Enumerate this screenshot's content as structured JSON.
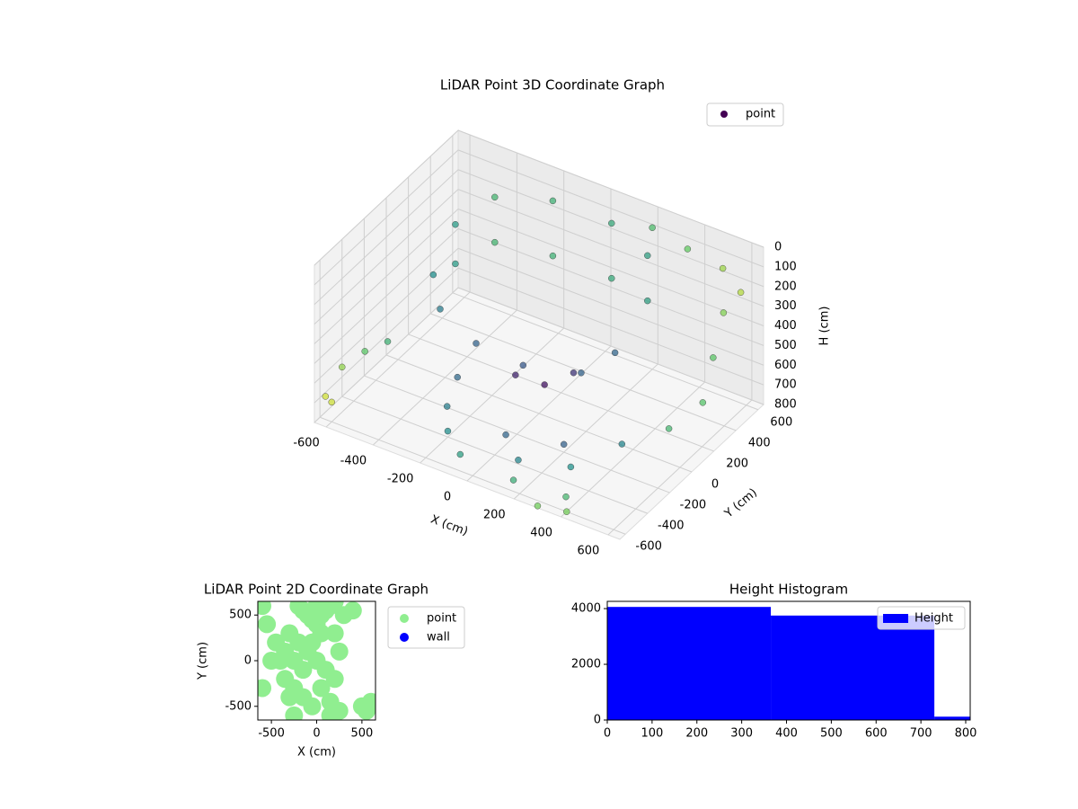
{
  "chart_data": [
    {
      "type": "scatter3d",
      "title": "LiDAR Point 3D Coordinate Graph",
      "xlabel": "X (cm)",
      "ylabel": "Y (cm)",
      "zlabel": "H (cm)",
      "colormap": "viridis",
      "legend": "upper right",
      "xlim": [
        -650,
        650
      ],
      "ylim": [
        -650,
        650
      ],
      "zlim": [
        800,
        0
      ],
      "xticks": [
        -600,
        -400,
        -200,
        0,
        200,
        400,
        600
      ],
      "yticks": [
        -600,
        -400,
        -200,
        0,
        200,
        400,
        600
      ],
      "zticks": [
        0,
        100,
        200,
        300,
        400,
        500,
        600,
        700,
        800
      ],
      "series": [
        {
          "name": "point",
          "color": "#440154",
          "x": [
            -450,
            -400,
            -200,
            50,
            250,
            -450,
            -400,
            -200,
            50,
            250,
            -450,
            -350,
            -150,
            50,
            250,
            300,
            0,
            100,
            200,
            -200,
            300,
            400,
            -100,
            150,
            350,
            -600,
            -650,
            -550,
            -600,
            -650,
            550,
            600,
            650,
            600,
            400,
            300,
            200,
            350,
            500,
            600,
            -300,
            -100,
            100,
            0,
            -250
          ],
          "y": [
            200,
            450,
            550,
            550,
            450,
            200,
            450,
            550,
            550,
            450,
            0,
            -150,
            -250,
            -250,
            -150,
            50,
            -300,
            -400,
            -200,
            -400,
            -350,
            -100,
            -500,
            -550,
            -500,
            -300,
            -400,
            -200,
            -600,
            -550,
            500,
            300,
            100,
            -100,
            -600,
            -650,
            600,
            600,
            600,
            550,
            -100,
            0,
            100,
            50,
            -300
          ],
          "z": [
            150,
            120,
            100,
            100,
            120,
            350,
            350,
            380,
            380,
            350,
            300,
            350,
            380,
            400,
            400,
            380,
            750,
            780,
            760,
            770,
            750,
            720,
            790,
            780,
            800,
            600,
            650,
            580,
            700,
            720,
            300,
            400,
            500,
            550,
            800,
            790,
            80,
            120,
            150,
            200,
            700,
            650,
            600,
            680,
            720
          ]
        }
      ]
    },
    {
      "type": "scatter",
      "title": "LiDAR Point 2D Coordinate Graph",
      "xlabel": "X (cm)",
      "ylabel": "Y (cm)",
      "legend": "outside right",
      "xlim": [
        -650,
        650
      ],
      "ylim": [
        -650,
        650
      ],
      "xticks": [
        -500,
        0,
        500
      ],
      "yticks": [
        -500,
        0,
        500
      ],
      "series": [
        {
          "name": "point",
          "color": "#90ee90",
          "x": [
            -600,
            -550,
            -450,
            -400,
            -350,
            -300,
            -250,
            -200,
            -150,
            -100,
            -50,
            0,
            50,
            100,
            150,
            200,
            250,
            -300,
            -200,
            -100,
            0,
            100,
            200,
            -250,
            -150,
            -50,
            50,
            150,
            -350,
            -250,
            -150,
            -50,
            50,
            150,
            250,
            500,
            600,
            550,
            -600,
            300,
            0,
            200,
            400,
            -500
          ],
          "y": [
            600,
            400,
            200,
            0,
            -200,
            -400,
            -600,
            600,
            550,
            500,
            450,
            400,
            500,
            550,
            600,
            300,
            100,
            300,
            200,
            100,
            0,
            -100,
            -200,
            -300,
            -400,
            -500,
            -300,
            -450,
            100,
            0,
            -100,
            200,
            300,
            -600,
            -550,
            -500,
            -450,
            -550,
            -300,
            500,
            600,
            650,
            550,
            0
          ]
        },
        {
          "name": "wall",
          "color": "#0000ff",
          "x": [],
          "y": []
        }
      ]
    },
    {
      "type": "hist",
      "title": "Height Histogram",
      "legend": "upper right",
      "bins": [
        0,
        365,
        730,
        810
      ],
      "counts": [
        4060,
        3750,
        120
      ],
      "series_name": "Height",
      "color": "#0000ff",
      "xlim": [
        0,
        810
      ],
      "ylim": [
        0,
        4260
      ],
      "xticks": [
        0,
        100,
        200,
        300,
        400,
        500,
        600,
        700,
        800
      ],
      "yticks": [
        0,
        2000,
        4000
      ]
    }
  ]
}
